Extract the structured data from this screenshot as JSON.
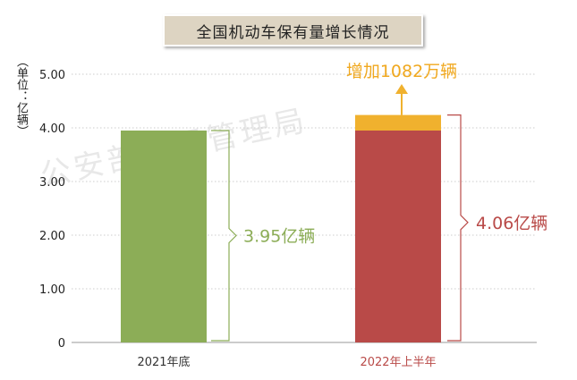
{
  "title": "全国机动车保有量增长情况",
  "unit_label": "（单位：亿辆）",
  "watermark": "公安部交通管理局",
  "colors": {
    "bar_2021": "#8cad57",
    "bar_2022": "#b94a48",
    "increase": "#f0b12e",
    "label_2021": "#8cad57",
    "label_2022": "#b94a48",
    "increase_label": "#f0a81f",
    "grid": "#cccccc"
  },
  "chart_data": {
    "type": "bar",
    "title": "全国机动车保有量增长情况",
    "categories": [
      "2021年底",
      "2022年上半年"
    ],
    "values": [
      3.95,
      4.06
    ],
    "increase": {
      "category": "2022年上半年",
      "label": "增加1082万辆",
      "from": 3.95,
      "to": 4.06
    },
    "data_labels": [
      "3.95亿辆",
      "4.06亿辆"
    ],
    "ylabel": "（单位：亿辆）",
    "ylim": [
      0,
      5
    ],
    "yticks": [
      "0",
      "1.00",
      "2.00",
      "3.00",
      "4.00",
      "5.00"
    ],
    "ytick_values": [
      0,
      1,
      2,
      3,
      4,
      5
    ],
    "grid": true
  }
}
